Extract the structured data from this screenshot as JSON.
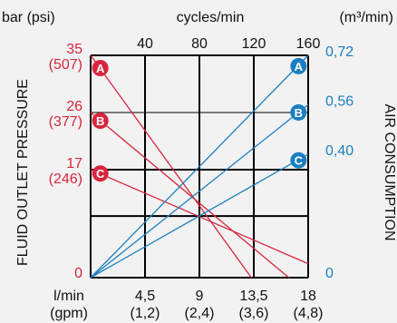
{
  "colors": {
    "background": "#f2f2f2",
    "grid": "#000000",
    "pressure": "#d7263d",
    "air": "#1a7fc1",
    "text": "#111111"
  },
  "labels": {
    "top_left_unit": "bar (psi)",
    "top_center": "cycles/min",
    "top_right_unit": "(m³/min)",
    "left_axis_title": "FLUID OUTLET PRESSURE",
    "right_axis_title": "AIR CONSUMPTION",
    "bottom_unit": "l/min",
    "bottom_unit_sub": "(gpm)"
  },
  "chart_data": {
    "type": "line",
    "x_top": {
      "label": "cycles/min",
      "ticks": [
        "40",
        "80",
        "120",
        "160"
      ],
      "range": [
        0,
        160
      ]
    },
    "x_bottom": {
      "label": "l/min",
      "unit_sub": "(gpm)",
      "ticks": [
        {
          "value": 4.5,
          "label": "4,5",
          "sub": "(1,2)"
        },
        {
          "value": 9,
          "label": "9",
          "sub": "(2,4)"
        },
        {
          "value": 13.5,
          "label": "13,5",
          "sub": "(3,6)"
        },
        {
          "value": 18,
          "label": "18",
          "sub": "(4,8)"
        }
      ],
      "range": [
        0,
        18
      ]
    },
    "y_left": {
      "label": "FLUID OUTLET PRESSURE",
      "unit": "bar (psi)",
      "range": [
        0,
        35
      ],
      "ticks": [
        {
          "value": 35,
          "label": "35",
          "sub": "(507)"
        },
        {
          "value": 26,
          "label": "26",
          "sub": "(377)"
        },
        {
          "value": 17,
          "label": "17",
          "sub": "(246)"
        },
        {
          "value": 0,
          "label": "0",
          "sub": ""
        }
      ]
    },
    "y_right": {
      "label": "AIR CONSUMPTION",
      "unit": "(m³/min)",
      "range": [
        0,
        0.72
      ],
      "ticks": [
        {
          "value": 0.72,
          "label": "0,72"
        },
        {
          "value": 0.56,
          "label": "0,56"
        },
        {
          "value": 0.4,
          "label": "0,40"
        },
        {
          "value": 0,
          "label": "0"
        }
      ]
    },
    "pressure_series": [
      {
        "name": "A",
        "axis": "left",
        "points": [
          [
            0,
            35
          ],
          [
            13.3,
            0
          ]
        ],
        "marker_at": [
          0.8,
          33
        ]
      },
      {
        "name": "B",
        "axis": "left",
        "points": [
          [
            0,
            26
          ],
          [
            16.4,
            0
          ]
        ],
        "marker_at": [
          0.8,
          24.7
        ]
      },
      {
        "name": "C",
        "axis": "left",
        "points": [
          [
            0,
            17
          ],
          [
            18,
            2.2
          ]
        ],
        "marker_at": [
          0.8,
          16.4
        ]
      }
    ],
    "air_series": [
      {
        "name": "A",
        "axis": "right",
        "points": [
          [
            0,
            0
          ],
          [
            18,
            0.72
          ]
        ],
        "marker_at": [
          17.2,
          0.685
        ]
      },
      {
        "name": "B",
        "axis": "right",
        "points": [
          [
            0,
            0
          ],
          [
            18,
            0.56
          ]
        ],
        "marker_at": [
          17.2,
          0.535
        ]
      },
      {
        "name": "C",
        "axis": "right",
        "points": [
          [
            0,
            0
          ],
          [
            18,
            0.4
          ]
        ],
        "marker_at": [
          17.2,
          0.38
        ]
      }
    ]
  }
}
